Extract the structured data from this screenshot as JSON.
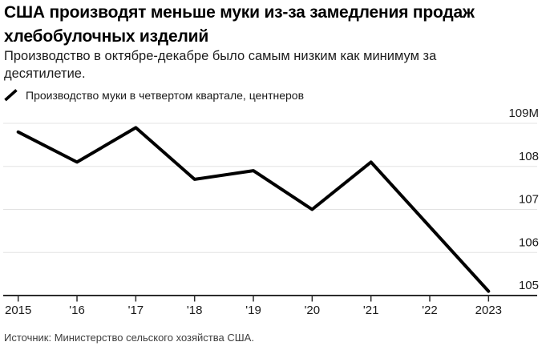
{
  "header": {
    "title_lines": [
      "США производят меньше муки из-за замедления продаж",
      "хлебобулочных изделий"
    ],
    "subtitle_lines": [
      "Производство в октябре-декабре было самым низким как минимум за",
      "десятилетие."
    ]
  },
  "legend": {
    "icon": "line-slash-icon",
    "series_label": "Производство муки в четвертом квартале, центнеров"
  },
  "chart_data": {
    "type": "line",
    "title": "США производят меньше муки из-за замедления продаж хлебобулочных изделий",
    "subtitle": "Производство в октябре-декабре было самым низким как минимум за десятилетие.",
    "series_name": "Производство муки в четвертом квартале, центнеров",
    "categories": [
      "2015",
      "2016",
      "2017",
      "2018",
      "2019",
      "2020",
      "2021",
      "2022",
      "2023"
    ],
    "x_tick_labels": [
      "2015",
      "'16",
      "'17",
      "'18",
      "'19",
      "'20",
      "'21",
      "'22",
      "2023"
    ],
    "values": [
      108.8,
      108.1,
      108.9,
      107.7,
      107.9,
      107.0,
      108.1,
      106.6,
      105.1
    ],
    "y_ticks": [
      {
        "value": 109,
        "label": "109M"
      },
      {
        "value": 108,
        "label": "108"
      },
      {
        "value": 107,
        "label": "107"
      },
      {
        "value": 106,
        "label": "106"
      },
      {
        "value": 105,
        "label": "105"
      }
    ],
    "ylim": [
      105,
      109.4
    ],
    "grid": "horizontal",
    "legend_position": "top-left"
  },
  "colors": {
    "line": "#000000",
    "grid": "#e3e3e3",
    "axis": "#2b2b2b",
    "tick_text": "#1a1a1a",
    "source_text": "#3d3d3d"
  },
  "source": {
    "label": "Источник: Министерство сельского хозяйства США."
  }
}
